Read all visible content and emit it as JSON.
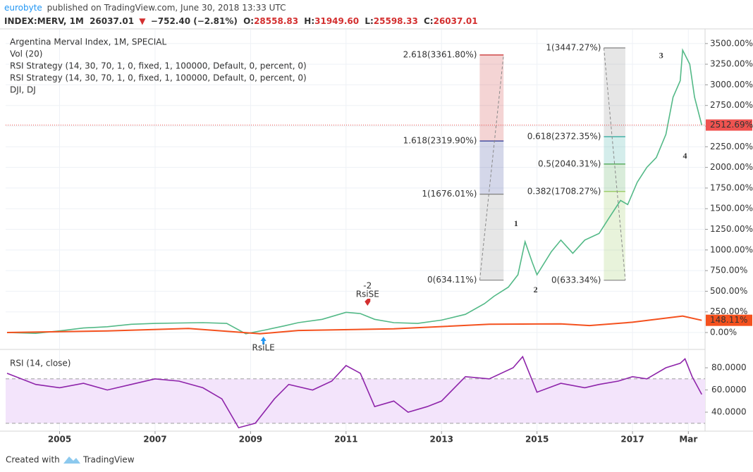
{
  "header": {
    "publisher": "eurobyte",
    "published": "published on TradingView.com, June 30, 2018 13:33 UTC",
    "symbol": "INDEX:MERV, 1M",
    "last": "26037.01",
    "change": "−752.40 (−2.81%)",
    "ohlc": [
      {
        "key": "O:",
        "value": "28558.83"
      },
      {
        "key": "H:",
        "value": "31949.60"
      },
      {
        "key": "L:",
        "value": "25598.33"
      },
      {
        "key": "C:",
        "value": "26037.01"
      }
    ]
  },
  "chart_data": [
    {
      "type": "line",
      "legend": [
        "Argentina Merval Index, 1M, SPECIAL",
        "Vol (20)",
        "RSI Strategy (14, 30, 70, 1, 0, fixed, 1, 100000, Default, 0, percent, 0)",
        "RSI Strategy (14, 30, 70, 1, 0, fixed, 1, 100000, Default, 0, percent, 0)",
        "DJI, DJ"
      ],
      "xlim": [
        2003.87,
        2018.52
      ],
      "xticks": [
        {
          "value": 2005,
          "label": "2005"
        },
        {
          "value": 2007,
          "label": "2007"
        },
        {
          "value": 2009,
          "label": "2009"
        },
        {
          "value": 2011,
          "label": "2011"
        },
        {
          "value": 2013,
          "label": "2013"
        },
        {
          "value": 2015,
          "label": "2015"
        },
        {
          "value": 2017,
          "label": "2017"
        },
        {
          "value": 2018.17,
          "label": "Mar"
        }
      ],
      "ylim": [
        -196,
        3669
      ],
      "yticks": [
        {
          "value": 0,
          "label": "0.00%"
        },
        {
          "value": 250,
          "label": "250.00%"
        },
        {
          "value": 500,
          "label": "500.00%"
        },
        {
          "value": 750,
          "label": "750.00%"
        },
        {
          "value": 1000,
          "label": "1000.00%"
        },
        {
          "value": 1250,
          "label": "1250.00%"
        },
        {
          "value": 1500,
          "label": "1500.00%"
        },
        {
          "value": 1750,
          "label": "1750.00%"
        },
        {
          "value": 2000,
          "label": "2000.00%"
        },
        {
          "value": 2250,
          "label": "2250.00%"
        },
        {
          "value": 2500,
          "label": "2500.00%"
        },
        {
          "value": 2750,
          "label": "2750.00%"
        },
        {
          "value": 3000,
          "label": "3000.00%"
        },
        {
          "value": 3250,
          "label": "3250.00%"
        },
        {
          "value": 3500,
          "label": "3500.00%"
        }
      ],
      "grid": true,
      "series": [
        {
          "name": "Argentina Merval Index",
          "color": "#53b987",
          "tag_color": "#ef5350",
          "price_tag": "2512.69%",
          "x": [
            2003.9,
            2004.5,
            2005,
            2005.5,
            2006,
            2006.5,
            2007,
            2007.5,
            2008,
            2008.5,
            2008.9,
            2009.3,
            2009.7,
            2010,
            2010.5,
            2011,
            2011.3,
            2011.6,
            2012,
            2012.5,
            2013,
            2013.5,
            2013.9,
            2014.1,
            2014.4,
            2014.6,
            2014.75,
            2014.9,
            2015,
            2015.3,
            2015.5,
            2015.75,
            2016,
            2016.3,
            2016.5,
            2016.75,
            2016.9,
            2017.1,
            2017.3,
            2017.5,
            2017.7,
            2017.85,
            2018,
            2018.05,
            2018.2,
            2018.3,
            2018.45
          ],
          "values": [
            0,
            -10,
            20,
            55,
            70,
            100,
            110,
            115,
            120,
            110,
            -15,
            30,
            80,
            120,
            160,
            245,
            230,
            160,
            120,
            110,
            150,
            220,
            350,
            440,
            550,
            700,
            1100,
            850,
            700,
            980,
            1120,
            960,
            1120,
            1200,
            1380,
            1600,
            1550,
            1820,
            2000,
            2120,
            2400,
            2850,
            3050,
            3420,
            3250,
            2850,
            2512.69
          ]
        },
        {
          "name": "DJI",
          "color": "#f4511e",
          "tag_color": "#f4511e",
          "price_tag": "148.11%",
          "x": [
            2003.9,
            2006,
            2007.7,
            2009.2,
            2010,
            2012,
            2014,
            2015.5,
            2016.1,
            2017,
            2018.05,
            2018.45
          ],
          "values": [
            0,
            20,
            50,
            -15,
            25,
            45,
            100,
            105,
            85,
            125,
            200,
            148.11
          ]
        }
      ],
      "fibs": [
        {
          "x": [
            2013.8,
            2014.3
          ],
          "direction": "up",
          "levels": [
            {
              "value": 3361.8,
              "label": "2.618(3361.80%)",
              "color": "#c62828"
            },
            {
              "value": 2319.9,
              "label": "1.618(2319.90%)",
              "color": "#283593"
            },
            {
              "value": 1676.01,
              "label": "1(1676.01%)",
              "color": "#808080"
            },
            {
              "value": 634.11,
              "label": "0(634.11%)",
              "color": "#808080"
            }
          ]
        },
        {
          "x": [
            2016.4,
            2016.85
          ],
          "direction": "down",
          "levels": [
            {
              "value": 3447.27,
              "label": "1(3447.27%)",
              "color": "#808080"
            },
            {
              "value": 2372.35,
              "label": "0.618(2372.35%)",
              "color": "#26a69a"
            },
            {
              "value": 2040.31,
              "label": "0.5(2040.31%)",
              "color": "#43a047"
            },
            {
              "value": 1708.27,
              "label": "0.382(1708.27%)",
              "color": "#8bc34a"
            },
            {
              "value": 633.34,
              "label": "0(633.34%)",
              "color": "#808080"
            }
          ]
        }
      ],
      "waves": [
        {
          "label": "1",
          "x": 2014.56,
          "y": 1314
        },
        {
          "label": "2",
          "x": 2014.97,
          "y": 512
        },
        {
          "label": "3",
          "x": 2017.6,
          "y": 3345
        },
        {
          "label": "4",
          "x": 2018.1,
          "y": 2133
        }
      ],
      "signals": [
        {
          "label": "RsiSE",
          "qty": "-2",
          "x": 2011.45,
          "side": "short",
          "color": "#d32f2f"
        },
        {
          "label": "RsiLE",
          "x": 2009.27,
          "side": "long",
          "color": "#2196f3"
        }
      ]
    },
    {
      "type": "line",
      "title": "RSI (14, close)",
      "ylim": [
        22.9,
        95.9
      ],
      "yticks": [
        {
          "value": 80,
          "label": "80.0000"
        },
        {
          "value": 60,
          "label": "60.0000"
        },
        {
          "value": 40,
          "label": "40.0000"
        }
      ],
      "bands": [
        30,
        70
      ],
      "series": [
        {
          "name": "RSI",
          "color": "#8e24aa",
          "x": [
            2003.9,
            2004.5,
            2005,
            2005.5,
            2006,
            2006.5,
            2007,
            2007.5,
            2008,
            2008.4,
            2008.75,
            2009.1,
            2009.5,
            2009.8,
            2010.3,
            2010.7,
            2011,
            2011.3,
            2011.6,
            2012,
            2012.3,
            2012.7,
            2013,
            2013.5,
            2014,
            2014.5,
            2014.7,
            2015,
            2015.5,
            2016,
            2016.3,
            2016.7,
            2017,
            2017.3,
            2017.7,
            2018,
            2018.1,
            2018.25,
            2018.45
          ],
          "values": [
            75,
            65,
            62,
            66,
            60,
            65,
            70,
            68,
            62,
            52,
            26,
            30,
            52,
            65,
            60,
            68,
            82,
            75,
            45,
            50,
            40,
            45,
            50,
            72,
            70,
            80,
            90,
            58,
            66,
            62,
            65,
            68,
            72,
            70,
            80,
            84,
            88,
            72,
            56
          ]
        }
      ]
    }
  ],
  "footer": {
    "created": "Created with",
    "brand": "TradingView"
  }
}
